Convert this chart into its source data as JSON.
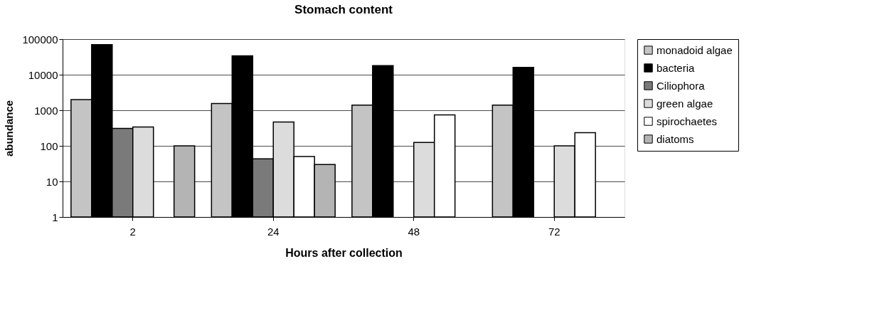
{
  "chart_data": {
    "type": "bar",
    "title": "Stomach content",
    "xlabel": "Hours after collection",
    "ylabel": "abundance",
    "categories": [
      "2",
      "24",
      "48",
      "72"
    ],
    "series": [
      {
        "name": "monadoid algae",
        "color": "#c4c4c4",
        "values": [
          2000,
          1550,
          1400,
          1400
        ]
      },
      {
        "name": "bacteria",
        "color": "#000000",
        "values": [
          70000,
          34000,
          18000,
          16000
        ]
      },
      {
        "name": "Ciliophora",
        "color": "#7a7a7a",
        "values": [
          310,
          43,
          null,
          null
        ]
      },
      {
        "name": "green algae",
        "color": "#dcdcdc",
        "values": [
          340,
          470,
          125,
          100
        ]
      },
      {
        "name": "spirochaetes",
        "color": "#ffffff",
        "values": [
          null,
          50,
          740,
          235
        ]
      },
      {
        "name": "diatoms",
        "color": "#b4b4b4",
        "values": [
          100,
          30,
          null,
          null
        ]
      }
    ],
    "log": "y",
    "ylim": [
      1,
      100000
    ],
    "yticks": [
      1,
      10,
      100,
      1000,
      10000,
      100000
    ],
    "grid": "y",
    "legend": "right"
  }
}
